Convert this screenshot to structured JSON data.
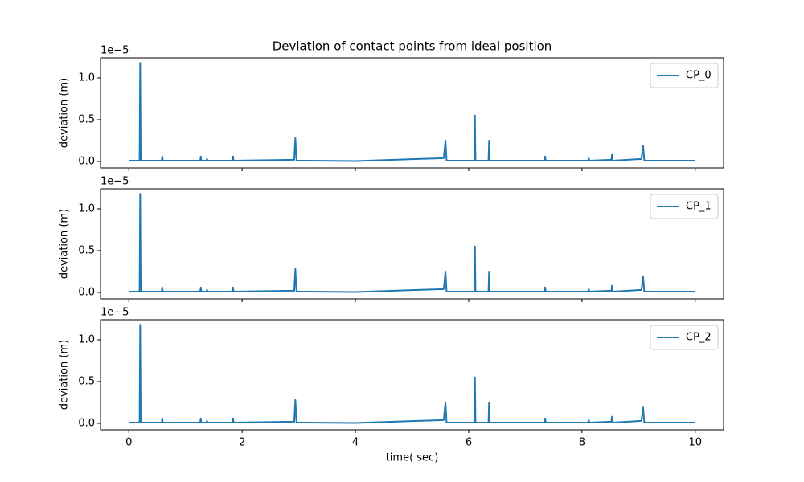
{
  "chart_data": [
    {
      "type": "line",
      "title": "Deviation of contact points from ideal position",
      "ylabel": "deviation (m)",
      "y_offset_label": "1e−5",
      "x": [
        0,
        0.19,
        0.2,
        0.21,
        0.58,
        0.59,
        0.6,
        1.26,
        1.27,
        1.28,
        1.37,
        1.38,
        1.39,
        1.83,
        1.84,
        1.85,
        2.92,
        2.94,
        2.96,
        4.0,
        5.56,
        5.59,
        5.61,
        6.1,
        6.11,
        6.12,
        6.35,
        6.36,
        6.37,
        7.34,
        7.35,
        7.36,
        8.11,
        8.12,
        8.13,
        8.52,
        8.53,
        8.54,
        9.05,
        9.08,
        9.1,
        10
      ],
      "series": [
        {
          "name": "CP_0",
          "color": "#1f77b4",
          "values": [
            0.01,
            0.01,
            1.18,
            0.01,
            0.01,
            0.06,
            0.01,
            0.01,
            0.06,
            0.01,
            0.01,
            0.03,
            0.01,
            0.01,
            0.06,
            0.01,
            0.02,
            0.28,
            0.01,
            0.005,
            0.04,
            0.25,
            0.01,
            0.01,
            0.55,
            0.01,
            0.01,
            0.25,
            0.01,
            0.01,
            0.06,
            0.01,
            0.01,
            0.04,
            0.01,
            0.02,
            0.08,
            0.01,
            0.03,
            0.19,
            0.01,
            0.01
          ]
        }
      ],
      "xlim": [
        -0.5,
        10.5
      ],
      "ylim": [
        -0.077,
        1.24
      ],
      "xticks": [
        0,
        2,
        4,
        6,
        8,
        10
      ],
      "xtick_labels": false,
      "yticks": [
        {
          "value": 0,
          "label": "0.0"
        },
        {
          "value": 0.5,
          "label": "0.5"
        },
        {
          "value": 1,
          "label": "1.0"
        }
      ],
      "legend": "upper right"
    },
    {
      "type": "line",
      "ylabel": "deviation (m)",
      "y_offset_label": "1e−5",
      "x": [
        0,
        0.19,
        0.2,
        0.21,
        0.58,
        0.59,
        0.6,
        1.26,
        1.27,
        1.28,
        1.37,
        1.38,
        1.39,
        1.83,
        1.84,
        1.85,
        2.92,
        2.94,
        2.96,
        4.0,
        5.56,
        5.59,
        5.61,
        6.1,
        6.11,
        6.12,
        6.35,
        6.36,
        6.37,
        7.34,
        7.35,
        7.36,
        8.11,
        8.12,
        8.13,
        8.52,
        8.53,
        8.54,
        9.05,
        9.08,
        9.1,
        10
      ],
      "series": [
        {
          "name": "CP_1",
          "color": "#1f77b4",
          "values": [
            0.01,
            0.01,
            1.18,
            0.01,
            0.01,
            0.06,
            0.01,
            0.01,
            0.06,
            0.01,
            0.01,
            0.03,
            0.01,
            0.01,
            0.06,
            0.01,
            0.02,
            0.28,
            0.01,
            0.005,
            0.04,
            0.25,
            0.01,
            0.01,
            0.55,
            0.01,
            0.01,
            0.25,
            0.01,
            0.01,
            0.06,
            0.01,
            0.01,
            0.04,
            0.01,
            0.02,
            0.08,
            0.01,
            0.03,
            0.19,
            0.01,
            0.01
          ]
        }
      ],
      "xlim": [
        -0.5,
        10.5
      ],
      "ylim": [
        -0.077,
        1.24
      ],
      "xticks": [
        0,
        2,
        4,
        6,
        8,
        10
      ],
      "xtick_labels": false,
      "yticks": [
        {
          "value": 0,
          "label": "0.0"
        },
        {
          "value": 0.5,
          "label": "0.5"
        },
        {
          "value": 1,
          "label": "1.0"
        }
      ],
      "legend": "upper right"
    },
    {
      "type": "line",
      "ylabel": "deviation (m)",
      "xlabel": "time( sec)",
      "y_offset_label": "1e−5",
      "x": [
        0,
        0.19,
        0.2,
        0.21,
        0.58,
        0.59,
        0.6,
        1.26,
        1.27,
        1.28,
        1.37,
        1.38,
        1.39,
        1.83,
        1.84,
        1.85,
        2.92,
        2.94,
        2.96,
        4.0,
        5.56,
        5.59,
        5.61,
        6.1,
        6.11,
        6.12,
        6.35,
        6.36,
        6.37,
        7.34,
        7.35,
        7.36,
        8.11,
        8.12,
        8.13,
        8.52,
        8.53,
        8.54,
        9.05,
        9.08,
        9.1,
        10
      ],
      "series": [
        {
          "name": "CP_2",
          "color": "#1f77b4",
          "values": [
            0.01,
            0.01,
            1.18,
            0.01,
            0.01,
            0.06,
            0.01,
            0.01,
            0.06,
            0.01,
            0.01,
            0.03,
            0.01,
            0.01,
            0.06,
            0.01,
            0.02,
            0.28,
            0.01,
            0.005,
            0.04,
            0.25,
            0.01,
            0.01,
            0.55,
            0.01,
            0.01,
            0.25,
            0.01,
            0.01,
            0.06,
            0.01,
            0.01,
            0.04,
            0.01,
            0.02,
            0.08,
            0.01,
            0.03,
            0.19,
            0.01,
            0.01
          ]
        }
      ],
      "xlim": [
        -0.5,
        10.5
      ],
      "ylim": [
        -0.077,
        1.24
      ],
      "xticks": [
        0,
        2,
        4,
        6,
        8,
        10
      ],
      "xtick_labels": true,
      "yticks": [
        {
          "value": 0,
          "label": "0.0"
        },
        {
          "value": 0.5,
          "label": "0.5"
        },
        {
          "value": 1,
          "label": "1.0"
        }
      ],
      "legend": "upper right"
    }
  ]
}
